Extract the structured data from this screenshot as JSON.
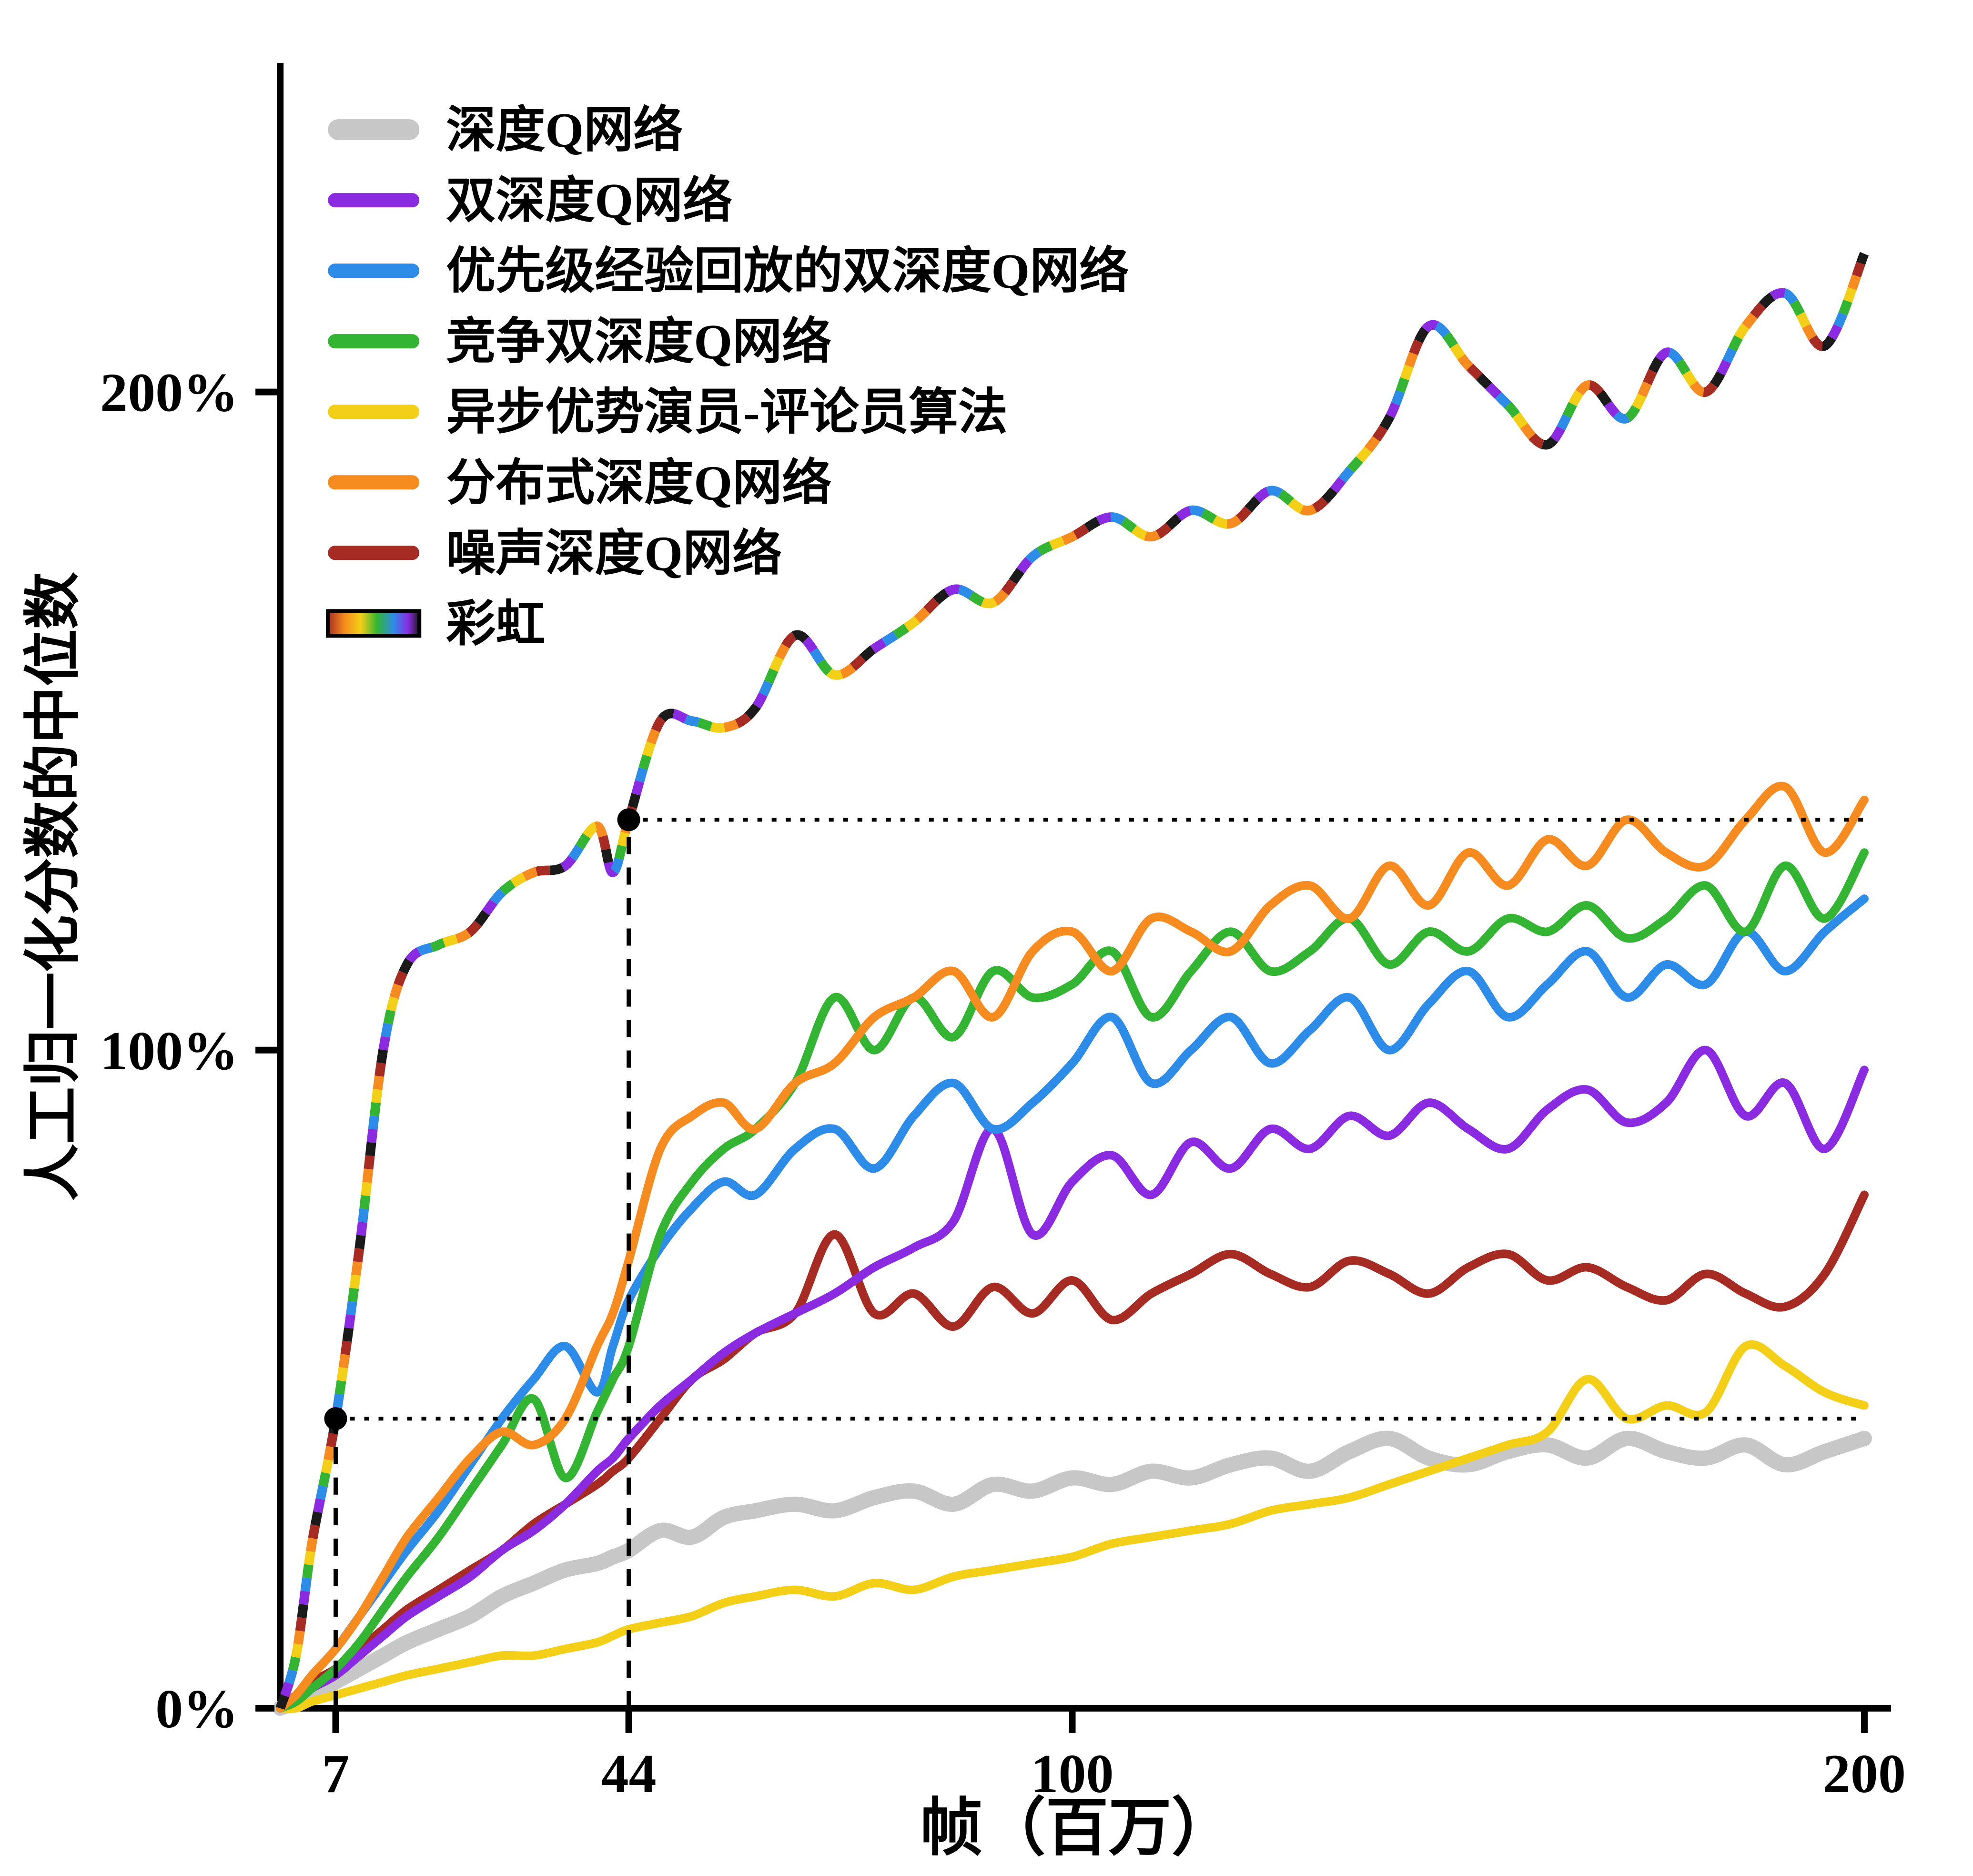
{
  "figure": {
    "background": "#ffffff"
  },
  "chart_data": {
    "type": "line",
    "title": "",
    "xlabel": "帧（百万）",
    "ylabel": "人工归一化分数的中位数",
    "xlim": [
      0,
      200
    ],
    "ylim": [
      0,
      250
    ],
    "grid": false,
    "legend_position": "top-left",
    "x_ticks": [
      {
        "value": 7,
        "label": "7"
      },
      {
        "value": 44,
        "label": "44"
      },
      {
        "value": 100,
        "label": "100"
      },
      {
        "value": 200,
        "label": "200"
      }
    ],
    "y_ticks": [
      {
        "value": 0,
        "label": "0%"
      },
      {
        "value": 100,
        "label": "100%"
      },
      {
        "value": 200,
        "label": "200%"
      }
    ],
    "x": [
      0,
      2,
      4,
      7,
      10,
      13,
      16,
      20,
      24,
      28,
      32,
      36,
      40,
      42,
      44,
      48,
      52,
      56,
      60,
      65,
      70,
      75,
      80,
      85,
      90,
      95,
      100,
      105,
      110,
      115,
      120,
      125,
      130,
      135,
      140,
      145,
      150,
      155,
      160,
      165,
      170,
      175,
      180,
      185,
      190,
      195,
      200
    ],
    "series": [
      {
        "name": "深度Q网络",
        "color": "#c7c7c7",
        "width": 8,
        "values": [
          0,
          1,
          2,
          4,
          6,
          8,
          10,
          12,
          14,
          17,
          19,
          21,
          22,
          23,
          24,
          27,
          26,
          29,
          30,
          31,
          30,
          32,
          33,
          31,
          34,
          33,
          35,
          34,
          36,
          35,
          37,
          38,
          36,
          39,
          41,
          38,
          37,
          39,
          40,
          38,
          41,
          39,
          38,
          40,
          37,
          39,
          41
        ]
      },
      {
        "name": "双深度Q网络",
        "color": "#8a2be2",
        "width": 4.5,
        "values": [
          0,
          1,
          3,
          5,
          8,
          11,
          14,
          17,
          20,
          24,
          27,
          31,
          36,
          38,
          41,
          46,
          50,
          54,
          57,
          60,
          63,
          67,
          70,
          74,
          88,
          72,
          80,
          84,
          78,
          86,
          82,
          88,
          85,
          90,
          87,
          92,
          88,
          85,
          91,
          94,
          89,
          92,
          100,
          90,
          95,
          85,
          97
        ]
      },
      {
        "name": "优先级经验回放的双深度Q网络",
        "color": "#2d8ce8",
        "width": 4.5,
        "values": [
          0,
          2,
          5,
          9,
          14,
          19,
          24,
          30,
          37,
          44,
          50,
          55,
          48,
          55,
          62,
          70,
          76,
          80,
          78,
          85,
          88,
          82,
          90,
          95,
          88,
          92,
          98,
          105,
          95,
          100,
          105,
          98,
          103,
          108,
          100,
          107,
          112,
          105,
          110,
          115,
          108,
          113,
          110,
          118,
          112,
          118,
          123
        ]
      },
      {
        "name": "竞争双深度Q网络",
        "color": "#33b533",
        "width": 4.5,
        "values": [
          0,
          1,
          3,
          6,
          10,
          15,
          20,
          26,
          33,
          40,
          47,
          35,
          45,
          50,
          55,
          72,
          80,
          85,
          88,
          95,
          108,
          100,
          108,
          102,
          112,
          108,
          110,
          115,
          105,
          112,
          118,
          112,
          115,
          120,
          113,
          118,
          115,
          120,
          118,
          122,
          117,
          120,
          125,
          118,
          128,
          120,
          130
        ]
      },
      {
        "name": "异步优势演员-评论员算法",
        "color": "#f3cf17",
        "width": 4.5,
        "values": [
          0,
          0,
          1,
          2,
          3,
          4,
          5,
          6,
          7,
          8,
          8,
          9,
          10,
          11,
          12,
          13,
          14,
          16,
          17,
          18,
          17,
          19,
          18,
          20,
          21,
          22,
          23,
          25,
          26,
          27,
          28,
          30,
          31,
          32,
          34,
          36,
          38,
          40,
          42,
          50,
          44,
          46,
          45,
          55,
          52,
          48,
          46
        ]
      },
      {
        "name": "分布式深度Q网络",
        "color": "#f68b1f",
        "width": 4.5,
        "values": [
          0,
          2,
          5,
          9,
          14,
          20,
          26,
          32,
          38,
          42,
          40,
          44,
          55,
          60,
          68,
          85,
          90,
          92,
          88,
          95,
          98,
          105,
          108,
          112,
          105,
          115,
          118,
          112,
          120,
          118,
          115,
          122,
          125,
          120,
          128,
          122,
          130,
          125,
          132,
          128,
          135,
          130,
          128,
          135,
          140,
          130,
          138
        ]
      },
      {
        "name": "噪声深度Q网络",
        "color": "#a62b22",
        "width": 4.5,
        "values": [
          0,
          2,
          4,
          6,
          9,
          12,
          15,
          18,
          21,
          24,
          28,
          31,
          34,
          36,
          38,
          44,
          50,
          53,
          57,
          60,
          72,
          60,
          63,
          58,
          64,
          60,
          65,
          59,
          63,
          66,
          69,
          66,
          64,
          68,
          66,
          63,
          67,
          69,
          65,
          67,
          64,
          62,
          66,
          63,
          61,
          66,
          78
        ]
      },
      {
        "name": "彩虹",
        "style": "rainbow",
        "width": 5,
        "colors": [
          "#1a1a1a",
          "#8a2be2",
          "#2d8ce8",
          "#33b533",
          "#f3cf17",
          "#f68b1f",
          "#a62b22"
        ],
        "values": [
          0,
          8,
          25,
          44,
          70,
          100,
          113,
          116,
          118,
          124,
          127,
          128,
          134,
          127,
          135,
          150,
          150,
          149,
          152,
          163,
          157,
          161,
          165,
          170,
          168,
          175,
          178,
          181,
          178,
          182,
          180,
          185,
          182,
          188,
          196,
          210,
          204,
          198,
          192,
          201,
          196,
          206,
          200,
          210,
          215,
          207,
          221
        ]
      }
    ],
    "annotations": {
      "vlines": [
        {
          "x": 7,
          "y_top": 44
        },
        {
          "x": 44,
          "y_top": 135
        }
      ],
      "hlines": [
        {
          "y": 44,
          "x_start": 7,
          "x_end": 200
        },
        {
          "y": 135,
          "x_start": 44,
          "x_end": 200
        }
      ],
      "points": [
        {
          "x": 7,
          "y": 44
        },
        {
          "x": 44,
          "y": 135
        }
      ]
    }
  }
}
